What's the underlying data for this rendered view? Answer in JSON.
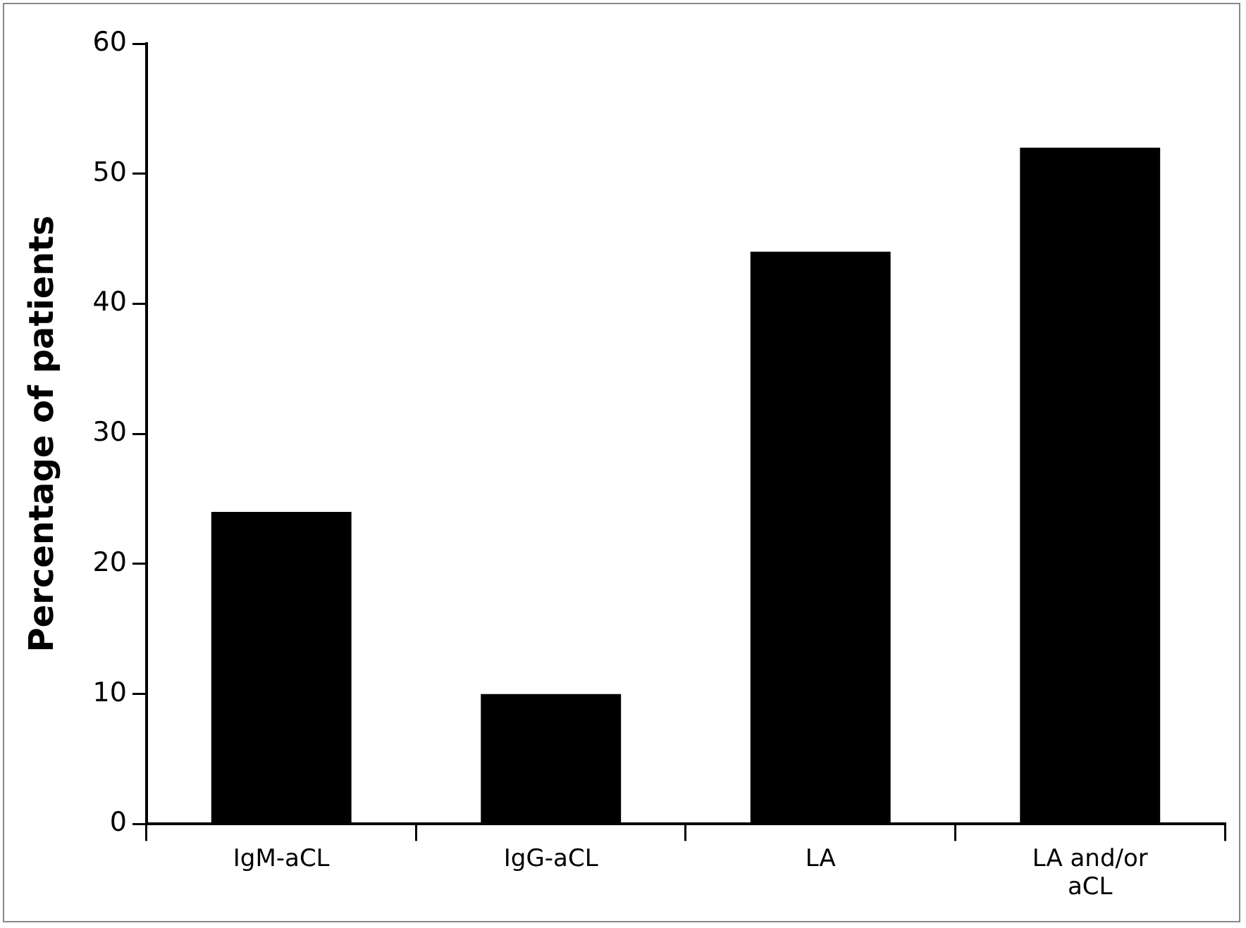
{
  "chart_data": {
    "type": "bar",
    "ylabel": "Percentage of patients",
    "categories": [
      "IgM-aCL",
      "IgG-aCL",
      "LA",
      "LA and/or aCL"
    ],
    "values": [
      24,
      10,
      44,
      52
    ],
    "color": "#000000",
    "ylim": [
      0,
      60
    ],
    "yticks": [
      0,
      10,
      20,
      30,
      40,
      50,
      60
    ],
    "grid": false,
    "legend": false
  }
}
